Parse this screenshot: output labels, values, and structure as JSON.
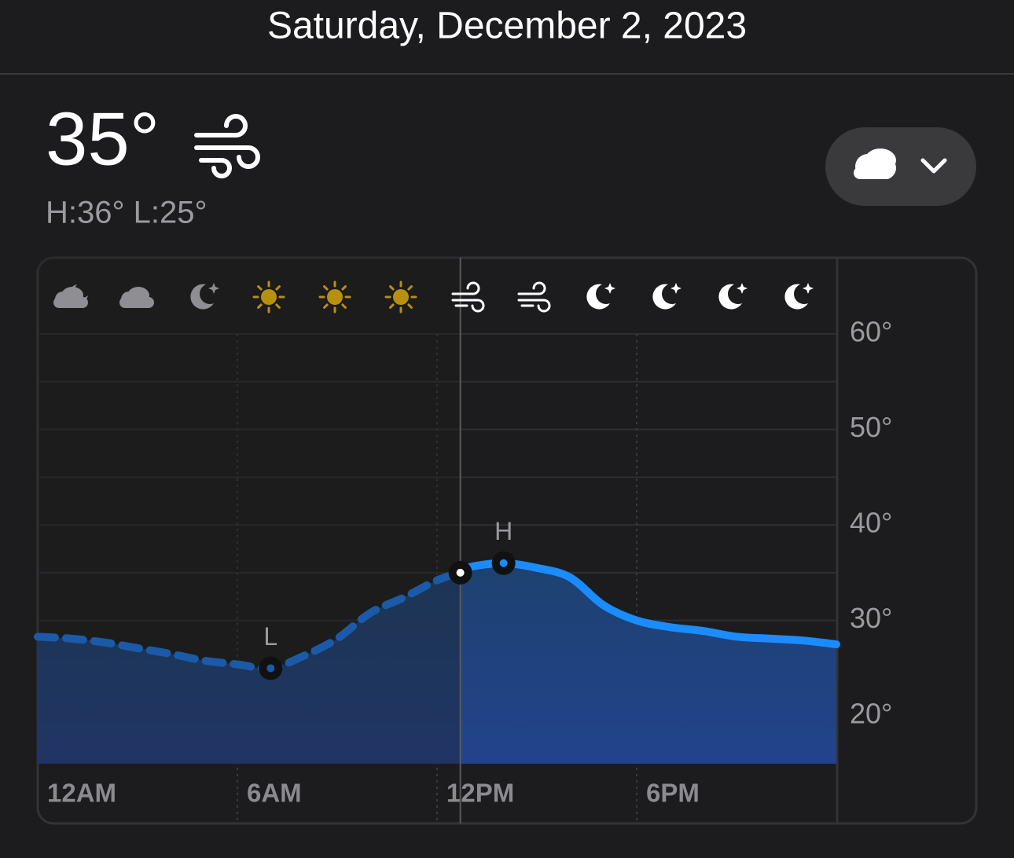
{
  "header": {
    "date": "Saturday, December 2, 2023"
  },
  "current": {
    "temperature": "35°",
    "high_low": "H:36° L:25°"
  },
  "chart_data": {
    "type": "line",
    "x": [
      0,
      1,
      2,
      3,
      4,
      5,
      6,
      7,
      8,
      9,
      10,
      11,
      12,
      12.7,
      13,
      14,
      15,
      16,
      17,
      18,
      19,
      20,
      21,
      22,
      23,
      24
    ],
    "values": [
      28.3,
      28.1,
      27.7,
      27.1,
      26.5,
      25.8,
      25.4,
      25,
      26.3,
      28.1,
      30.8,
      32.4,
      34.2,
      35,
      35.6,
      36,
      35.5,
      34.5,
      31.6,
      30,
      29.3,
      28.9,
      28.3,
      28.1,
      27.9,
      27.5
    ],
    "color": "#1a8cff",
    "current": {
      "x": 12.7,
      "value": 35
    },
    "low": {
      "x": 7,
      "value": 25,
      "label": "L"
    },
    "high": {
      "x": 14,
      "value": 36,
      "label": "H"
    },
    "xlim": [
      0,
      24
    ],
    "xticks": [
      {
        "value": 0,
        "label": "12AM"
      },
      {
        "value": 6,
        "label": "6AM"
      },
      {
        "value": 12,
        "label": "12PM"
      },
      {
        "value": 18,
        "label": "6PM"
      }
    ],
    "ylim": [
      15,
      60
    ],
    "yticks": [
      {
        "value": 60,
        "label": "60°"
      },
      {
        "value": 50,
        "label": "50°"
      },
      {
        "value": 40,
        "label": "40°"
      },
      {
        "value": 30,
        "label": "30°"
      },
      {
        "value": 20,
        "label": "20°"
      }
    ],
    "minor_yticks": [
      55,
      45,
      35,
      25
    ],
    "grid": true
  }
}
